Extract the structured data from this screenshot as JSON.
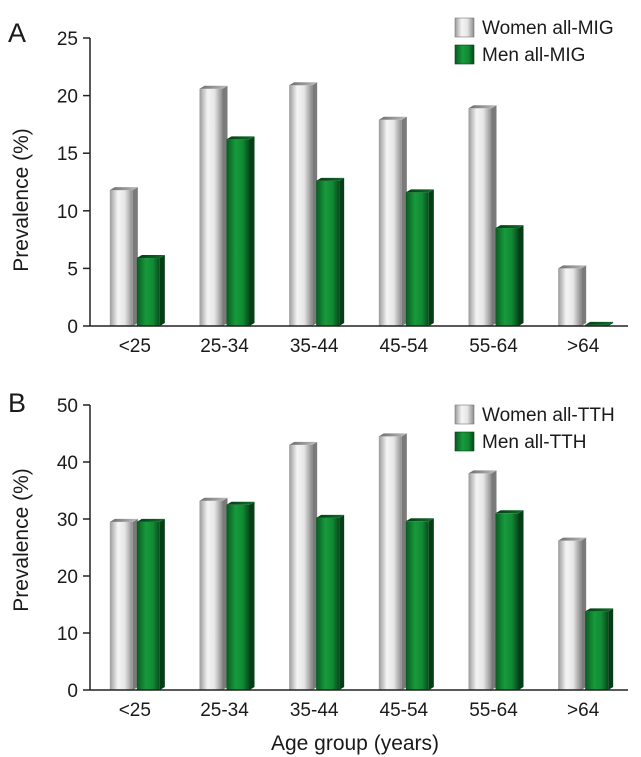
{
  "chart_data": [
    {
      "panel": "A",
      "type": "bar",
      "categories": [
        "<25",
        "25-34",
        "35-44",
        "45-54",
        "55-64",
        ">64"
      ],
      "series": [
        {
          "name": "Women all-MIG",
          "color": "#c9c9c9",
          "values": [
            11.8,
            20.6,
            20.9,
            17.9,
            18.9,
            5.0
          ]
        },
        {
          "name": "Men all-MIG",
          "color": "#0f7a2f",
          "values": [
            5.9,
            16.2,
            12.6,
            11.6,
            8.5,
            0.1
          ]
        }
      ],
      "xlabel": "",
      "ylabel": "Prevalence (%)",
      "ylim": [
        0,
        25
      ],
      "yticks": [
        0,
        5,
        10,
        15,
        20,
        25
      ],
      "legend": "top-right",
      "grid": false
    },
    {
      "panel": "B",
      "type": "bar",
      "categories": [
        "<25",
        "25-34",
        "35-44",
        "45-54",
        "55-64",
        ">64"
      ],
      "series": [
        {
          "name": "Women all-TTH",
          "color": "#c9c9c9",
          "values": [
            29.5,
            33.2,
            43.0,
            44.5,
            38.0,
            26.2
          ]
        },
        {
          "name": "Men all-TTH",
          "color": "#0f7a2f",
          "values": [
            29.5,
            32.5,
            30.2,
            29.6,
            31.0,
            13.8
          ]
        }
      ],
      "xlabel": "Age group (years)",
      "ylabel": "Prevalence (%)",
      "ylim": [
        0,
        50
      ],
      "yticks": [
        0,
        10,
        20,
        30,
        40,
        50
      ],
      "legend": "top-right",
      "grid": false
    }
  ]
}
